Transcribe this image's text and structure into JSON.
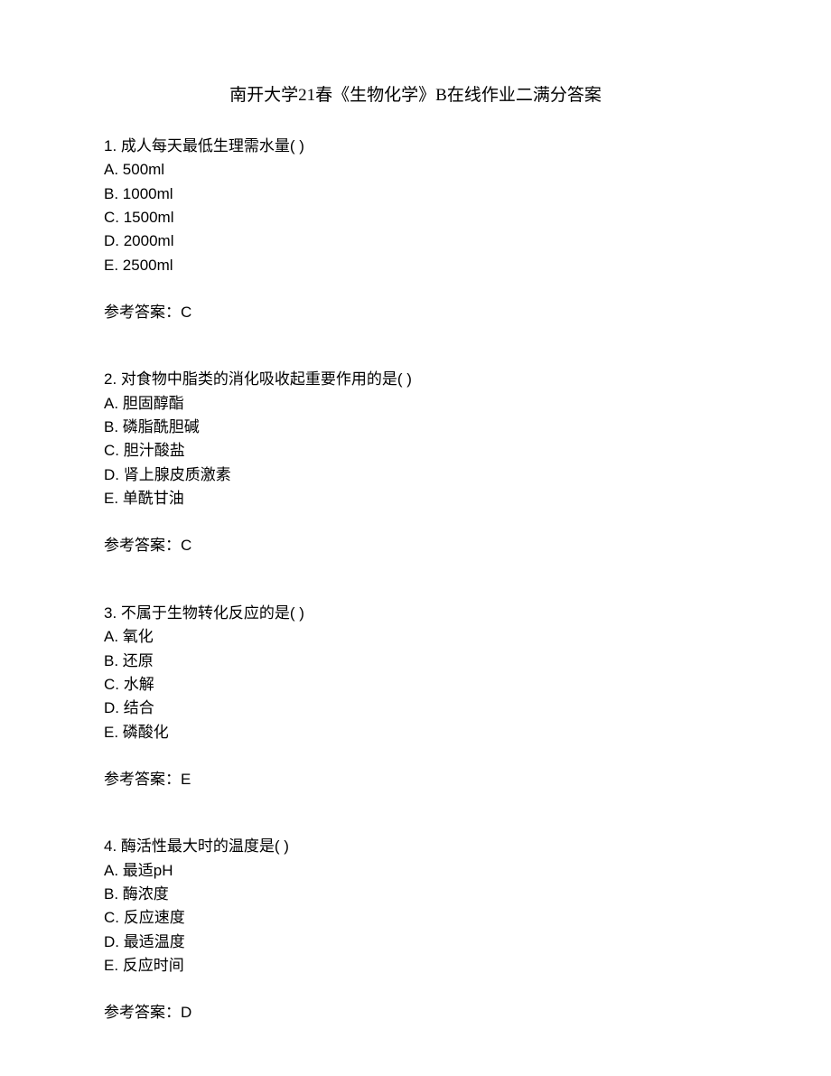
{
  "title": "南开大学21春《生物化学》B在线作业二满分答案",
  "questions": [
    {
      "number": "1.",
      "text": "成人每天最低生理需水量(  )",
      "options": {
        "a": "A. 500ml",
        "b": "B. 1000ml",
        "c": "C. 1500ml",
        "d": "D. 2000ml",
        "e": "E. 2500ml"
      },
      "answer": "参考答案：C"
    },
    {
      "number": "2.",
      "text": "对食物中脂类的消化吸收起重要作用的是(  )",
      "options": {
        "a": "A. 胆固醇酯",
        "b": "B. 磷脂酰胆碱",
        "c": "C. 胆汁酸盐",
        "d": "D. 肾上腺皮质激素",
        "e": "E. 单酰甘油"
      },
      "answer": "参考答案：C"
    },
    {
      "number": "3.",
      "text": "不属于生物转化反应的是(  )",
      "options": {
        "a": "A. 氧化",
        "b": "B. 还原",
        "c": "C. 水解",
        "d": "D. 结合",
        "e": "E. 磷酸化"
      },
      "answer": "参考答案：E"
    },
    {
      "number": "4.",
      "text": "酶活性最大时的温度是(  )",
      "options": {
        "a": "A. 最适pH",
        "b": "B. 酶浓度",
        "c": "C. 反应速度",
        "d": "D. 最适温度",
        "e": "E. 反应时间"
      },
      "answer": "参考答案：D"
    }
  ]
}
